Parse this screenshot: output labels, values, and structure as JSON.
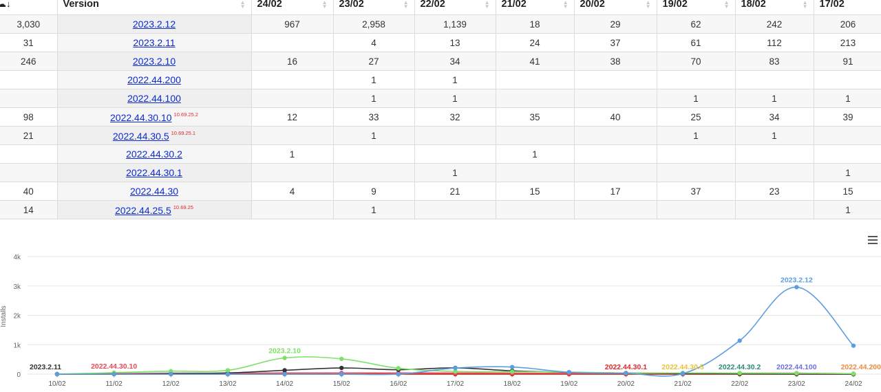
{
  "table": {
    "header": {
      "total_icon": "cloud-download-icon",
      "version": "Version",
      "dates": [
        "24/02",
        "23/02",
        "22/02",
        "21/02",
        "20/02",
        "19/02",
        "18/02",
        "17/02"
      ]
    },
    "rows": [
      {
        "total": "3,030",
        "version": "2023.2.12",
        "tag": "",
        "values": [
          "967",
          "2,958",
          "1,139",
          "18",
          "29",
          "62",
          "242",
          "206"
        ]
      },
      {
        "total": "31",
        "version": "2023.2.11",
        "tag": "",
        "values": [
          "",
          "4",
          "13",
          "24",
          "37",
          "61",
          "112",
          "213"
        ]
      },
      {
        "total": "246",
        "version": "2023.2.10",
        "tag": "",
        "values": [
          "16",
          "27",
          "34",
          "41",
          "38",
          "70",
          "83",
          "91"
        ]
      },
      {
        "total": "",
        "version": "2022.44.200",
        "tag": "",
        "values": [
          "",
          "1",
          "1",
          "",
          "",
          "",
          "",
          ""
        ]
      },
      {
        "total": "",
        "version": "2022.44.100",
        "tag": "",
        "values": [
          "",
          "1",
          "1",
          "",
          "",
          "1",
          "1",
          "1"
        ]
      },
      {
        "total": "98",
        "version": "2022.44.30.10",
        "tag": "10.69.25.2",
        "values": [
          "12",
          "33",
          "32",
          "35",
          "40",
          "25",
          "34",
          "39"
        ]
      },
      {
        "total": "21",
        "version": "2022.44.30.5",
        "tag": "10.69.25.1",
        "values": [
          "",
          "1",
          "",
          "",
          "",
          "1",
          "1",
          ""
        ]
      },
      {
        "total": "",
        "version": "2022.44.30.2",
        "tag": "",
        "values": [
          "1",
          "",
          "",
          "1",
          "",
          "",
          "",
          ""
        ]
      },
      {
        "total": "",
        "version": "2022.44.30.1",
        "tag": "",
        "values": [
          "",
          "",
          "1",
          "",
          "",
          "",
          "",
          "1"
        ]
      },
      {
        "total": "40",
        "version": "2022.44.30",
        "tag": "",
        "values": [
          "4",
          "9",
          "21",
          "15",
          "17",
          "37",
          "23",
          "15"
        ]
      },
      {
        "total": "14",
        "version": "2022.44.25.5",
        "tag": "10.69.25",
        "values": [
          "",
          "1",
          "",
          "",
          "",
          "",
          "",
          "1"
        ]
      }
    ]
  },
  "chart_data": {
    "type": "line",
    "ylabel": "Installs",
    "yticks": [
      "0",
      "1k",
      "2k",
      "3k",
      "4k"
    ],
    "ylim": [
      0,
      4000
    ],
    "categories": [
      "10/02",
      "11/02",
      "12/02",
      "13/02",
      "14/02",
      "15/02",
      "16/02",
      "17/02",
      "18/02",
      "19/02",
      "20/02",
      "21/02",
      "22/02",
      "23/02",
      "24/02"
    ],
    "series": [
      {
        "name": "2023.2.12",
        "color": "#5b9ee0",
        "values": [
          0,
          0,
          0,
          0,
          0,
          0,
          0,
          206,
          242,
          62,
          29,
          18,
          1139,
          2958,
          967
        ],
        "label_index": 13
      },
      {
        "name": "2023.2.10",
        "color": "#7ee06a",
        "values": [
          0,
          50,
          100,
          130,
          550,
          520,
          200,
          91,
          83,
          70,
          38,
          41,
          34,
          27,
          16
        ],
        "label_index": 4
      },
      {
        "name": "2023.2.11",
        "color": "#333333",
        "values": [
          0,
          0,
          20,
          40,
          130,
          210,
          150,
          213,
          112,
          61,
          37,
          24,
          13,
          4,
          0
        ],
        "label_index": 0
      },
      {
        "name": "2022.44.30.10",
        "color": "#e84b5a",
        "values": [
          0,
          20,
          30,
          30,
          40,
          40,
          40,
          39,
          34,
          25,
          40,
          35,
          32,
          33,
          12
        ],
        "label_index": 1
      },
      {
        "name": "2022.44.30.1",
        "color": "#e3262b",
        "values": [
          0,
          0,
          0,
          0,
          0,
          0,
          0,
          1,
          0,
          0,
          0,
          0,
          1,
          0,
          0
        ],
        "label_index": 10
      },
      {
        "name": "2022.44.30.5",
        "color": "#e8c13a",
        "values": [
          0,
          0,
          0,
          0,
          0,
          0,
          0,
          0,
          1,
          1,
          0,
          0,
          0,
          1,
          0
        ],
        "label_index": 11
      },
      {
        "name": "2022.44.30.2",
        "color": "#2a8a72",
        "values": [
          0,
          0,
          0,
          0,
          0,
          0,
          0,
          0,
          0,
          0,
          0,
          1,
          0,
          0,
          1
        ],
        "label_index": 12
      },
      {
        "name": "2022.44.100",
        "color": "#6b6fe0",
        "values": [
          0,
          0,
          0,
          0,
          0,
          0,
          0,
          1,
          1,
          1,
          0,
          0,
          1,
          1,
          0
        ],
        "label_index": 13
      },
      {
        "name": "2022.44.200",
        "color": "#f08a3c",
        "values": [
          0,
          0,
          0,
          0,
          0,
          0,
          0,
          0,
          0,
          0,
          0,
          0,
          1,
          1,
          0
        ],
        "label_index": 14
      }
    ]
  }
}
